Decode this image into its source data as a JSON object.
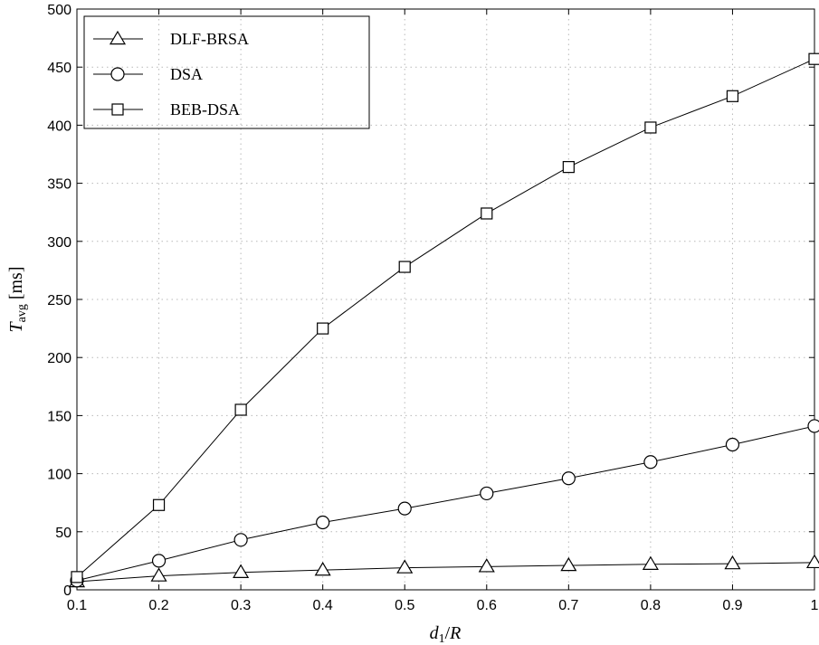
{
  "chart_data": {
    "type": "line",
    "title": "",
    "xlabel": "d1/R",
    "ylabel": "Tavg [ms]",
    "xlim": [
      0.1,
      1
    ],
    "ylim": [
      0,
      500
    ],
    "x_ticks": [
      "0.1",
      "0.2",
      "0.3",
      "0.4",
      "0.5",
      "0.6",
      "0.7",
      "0.8",
      "0.9",
      "1"
    ],
    "y_ticks": [
      "0",
      "50",
      "100",
      "150",
      "200",
      "250",
      "300",
      "350",
      "400",
      "450",
      "500"
    ],
    "grid": true,
    "legend_position": "top-left",
    "x": [
      0.1,
      0.2,
      0.3,
      0.4,
      0.5,
      0.6,
      0.7,
      0.8,
      0.9,
      1.0
    ],
    "series": [
      {
        "name": "DLF-BRSA",
        "marker": "triangle",
        "values": [
          7,
          12,
          15,
          17,
          19,
          20,
          21,
          22,
          22.5,
          23.5
        ]
      },
      {
        "name": "DSA",
        "marker": "circle",
        "values": [
          8,
          25,
          43,
          58,
          70,
          83,
          96,
          110,
          125,
          141
        ]
      },
      {
        "name": "BEB-DSA",
        "marker": "square",
        "values": [
          11,
          73,
          155,
          225,
          278,
          324,
          364,
          398,
          425,
          457
        ]
      }
    ]
  }
}
